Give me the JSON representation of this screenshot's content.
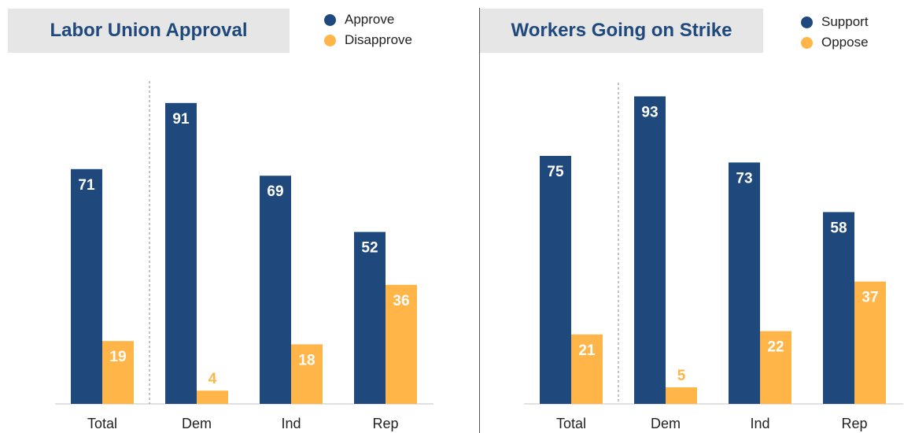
{
  "colors": {
    "dark": "#1f497d",
    "light": "#ffb547",
    "title_bg": "#e6e6e6",
    "title_text": "#1f497d"
  },
  "chart_data": [
    {
      "type": "bar",
      "title": "Labor Union Approval",
      "categories": [
        "Total",
        "Dem",
        "Ind",
        "Rep"
      ],
      "series": [
        {
          "name": "Approve",
          "values": [
            71,
            91,
            69,
            52
          ]
        },
        {
          "name": "Disapprove",
          "values": [
            19,
            4,
            18,
            36
          ]
        }
      ],
      "xlabel": "",
      "ylabel": "",
      "ylim": [
        0,
        100
      ],
      "grid": false,
      "legend": "top-right"
    },
    {
      "type": "bar",
      "title": "Workers Going on Strike",
      "categories": [
        "Total",
        "Dem",
        "Ind",
        "Rep"
      ],
      "series": [
        {
          "name": "Support",
          "values": [
            75,
            93,
            73,
            58
          ]
        },
        {
          "name": "Oppose",
          "values": [
            21,
            5,
            22,
            37
          ]
        }
      ],
      "xlabel": "",
      "ylabel": "",
      "ylim": [
        0,
        100
      ],
      "grid": false,
      "legend": "top-right"
    }
  ]
}
